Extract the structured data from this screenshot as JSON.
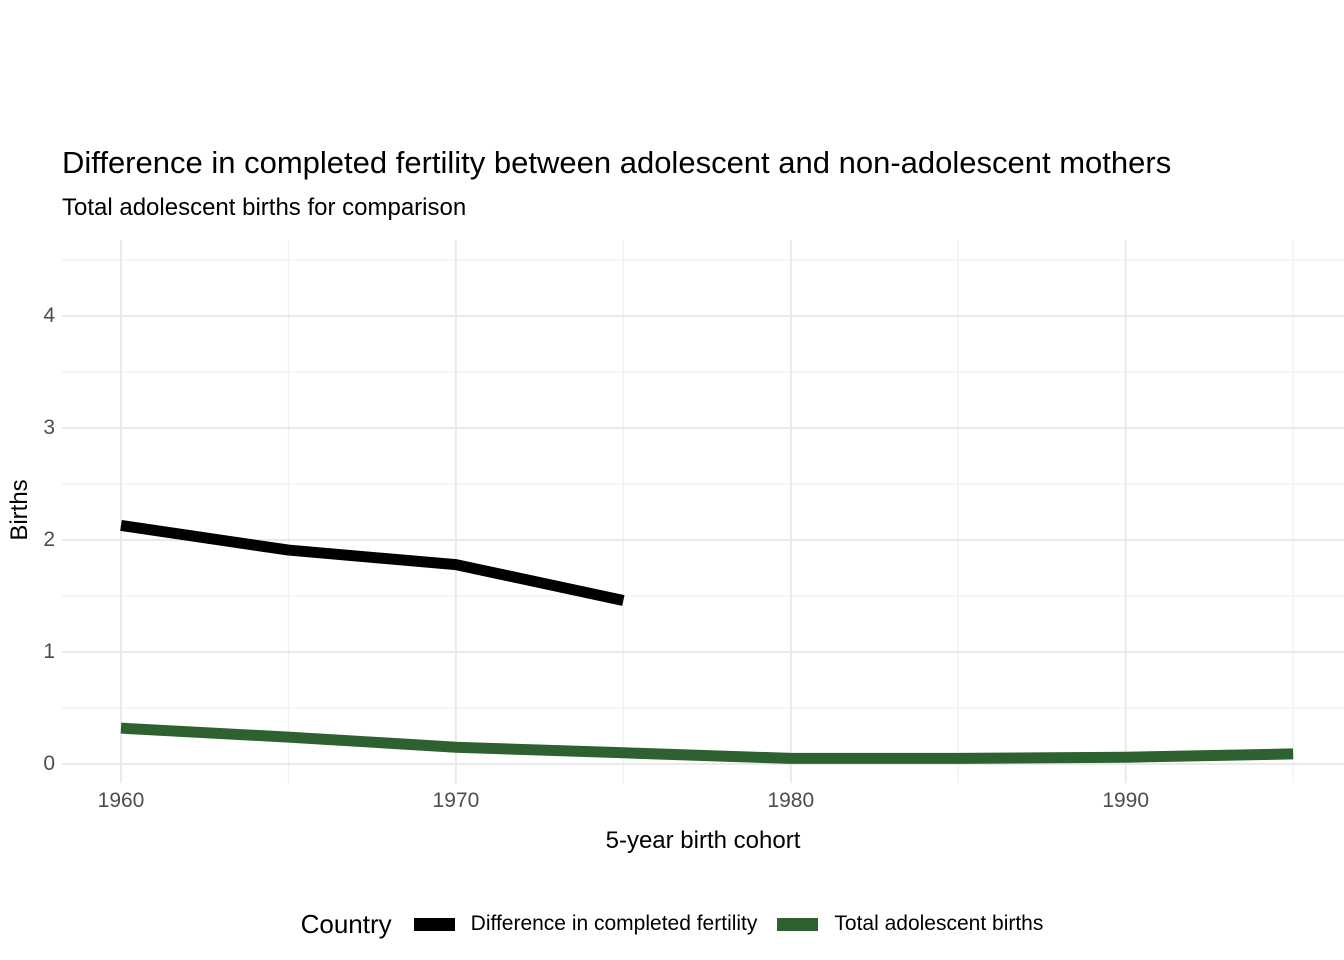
{
  "title": "Difference in completed fertility between adolescent and non-adolescent mothers",
  "subtitle": "Total adolescent births for comparison",
  "axes": {
    "x_label": "5-year birth cohort",
    "y_label": "Births",
    "x_tick_labels": [
      "1960",
      "1970",
      "1980",
      "1990"
    ],
    "y_tick_labels": [
      "0",
      "1",
      "2",
      "3",
      "4"
    ]
  },
  "legend": {
    "title": "Country",
    "items": [
      {
        "label": "Difference in completed fertility",
        "color": "#000000"
      },
      {
        "label": "Total adolescent births",
        "color": "#2d6130"
      }
    ]
  },
  "colors": {
    "background": "#ffffff",
    "grid_major": "#e6e6e6",
    "grid_minor": "#f0f0f0",
    "tick_label": "#4d4d4d",
    "series_black": "#000000",
    "series_green": "#2d6130"
  },
  "chart_data": {
    "type": "line",
    "title": "Difference in completed fertility between adolescent and non-adolescent mothers",
    "subtitle": "Total adolescent births for comparison",
    "xlabel": "5-year birth cohort",
    "ylabel": "Births",
    "x_ticks": [
      1960,
      1970,
      1980,
      1990
    ],
    "x_minor_ticks": [
      1965,
      1975,
      1985,
      1995
    ],
    "y_ticks": [
      0,
      1,
      2,
      3,
      4
    ],
    "y_minor_ticks": [
      0.5,
      1.5,
      2.5,
      3.5,
      4.5
    ],
    "xlim": [
      1958.2,
      1996.5
    ],
    "ylim": [
      -0.17,
      4.68
    ],
    "grid": "major+minor",
    "legend_position": "bottom",
    "legend_title": "Country",
    "series": [
      {
        "name": "Difference in completed fertility",
        "color": "#000000",
        "x": [
          1960,
          1965,
          1970,
          1975
        ],
        "y": [
          2.13,
          1.91,
          1.78,
          1.46
        ]
      },
      {
        "name": "Total adolescent births",
        "color": "#2d6130",
        "x": [
          1960,
          1965,
          1970,
          1975,
          1980,
          1985,
          1990,
          1995
        ],
        "y": [
          0.32,
          0.24,
          0.15,
          0.1,
          0.05,
          0.05,
          0.06,
          0.09
        ]
      }
    ]
  }
}
